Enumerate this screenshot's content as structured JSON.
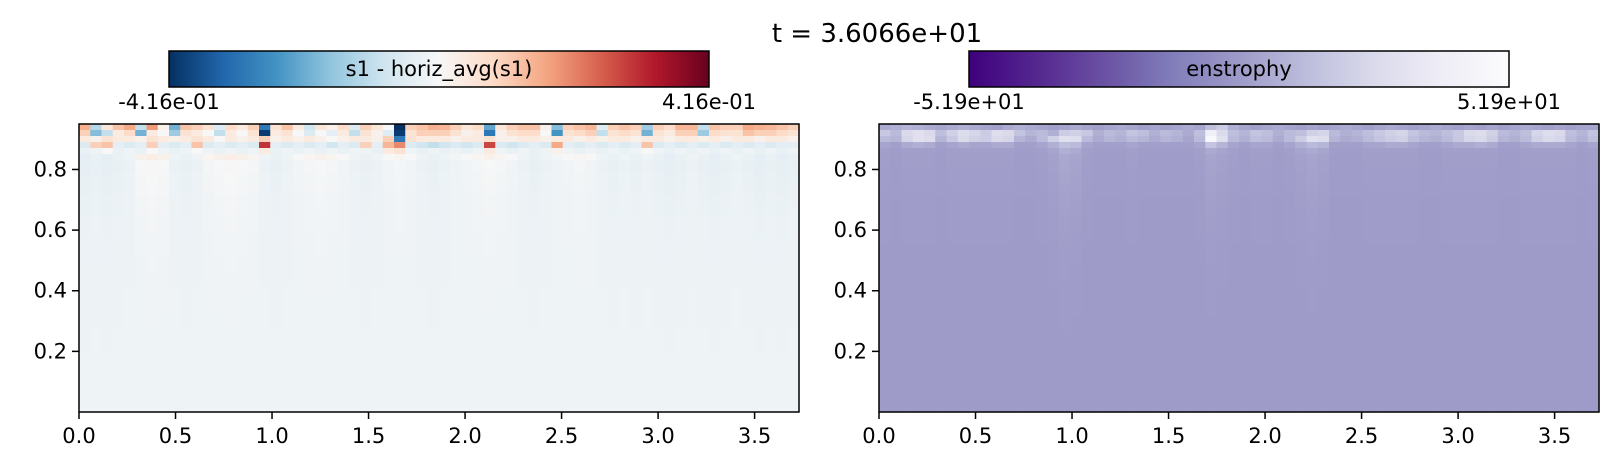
{
  "figure": {
    "title": "t = 3.6066e+01"
  },
  "chart_data": [
    {
      "type": "heatmap",
      "title": "",
      "xlabel": "",
      "ylabel": "",
      "xlim": [
        0.0,
        3.73
      ],
      "ylim": [
        0.0,
        0.95
      ],
      "xticks": [
        0.0,
        0.5,
        1.0,
        1.5,
        2.0,
        2.5,
        3.0,
        3.5
      ],
      "xtick_labels": [
        "0.0",
        "0.5",
        "1.0",
        "1.5",
        "2.0",
        "2.5",
        "3.0",
        "3.5"
      ],
      "yticks": [
        0.2,
        0.4,
        0.6,
        0.8
      ],
      "ytick_labels": [
        "0.2",
        "0.4",
        "0.6",
        "0.8"
      ],
      "colorbar": {
        "label": "s1 - horiz_avg(s1)",
        "colormap": "RdBu_r",
        "vmin": -0.416,
        "vmax": 0.416,
        "min_label": "-4.16e-01",
        "max_label": "4.16e-01",
        "colors": [
          "#053061",
          "#2166ac",
          "#4393c3",
          "#92c5de",
          "#d1e5f0",
          "#f7f7f7",
          "#fddbc7",
          "#f4a582",
          "#d6604d",
          "#b2182b",
          "#67001f"
        ]
      },
      "grid": {
        "nx": 64,
        "ny": 48
      },
      "field": {
        "description_free": true,
        "background": -0.02,
        "top_rows": [
          [
            0.15,
            -0.12,
            0.05,
            0.12,
            0.16,
            -0.1,
            0.18,
            0.02,
            -0.2,
            0.12,
            0.1,
            0.06,
            -0.05,
            0.08,
            0.04,
            0.1,
            -0.3,
            0.06,
            0.12,
            0.04,
            -0.08,
            0.05,
            0.02,
            0.08,
            -0.06,
            0.1,
            0.05,
            0.0,
            -0.42,
            0.1,
            0.12,
            0.15,
            0.14,
            0.1,
            0.05,
            0.08,
            -0.22,
            0.05,
            0.1,
            0.12,
            0.12,
            0.02,
            -0.18,
            0.1,
            0.12,
            0.14,
            -0.05,
            0.1,
            0.12,
            0.1,
            -0.15,
            0.1,
            0.08,
            0.14,
            0.14,
            -0.1,
            0.12,
            0.1,
            0.1,
            0.16,
            0.15,
            0.14,
            0.12,
            0.1
          ],
          [
            0.1,
            -0.18,
            -0.1,
            0.04,
            0.08,
            -0.2,
            0.04,
            0.0,
            -0.15,
            0.06,
            0.04,
            0.0,
            -0.1,
            0.04,
            0.0,
            0.06,
            -0.4,
            0.04,
            0.06,
            0.0,
            -0.06,
            0.0,
            -0.04,
            0.04,
            -0.1,
            0.06,
            0.02,
            -0.05,
            -0.4,
            0.06,
            0.1,
            0.1,
            0.1,
            0.06,
            0.02,
            0.04,
            -0.3,
            0.02,
            0.06,
            0.08,
            0.08,
            0.0,
            -0.25,
            0.06,
            0.08,
            0.1,
            -0.1,
            0.06,
            0.08,
            0.06,
            -0.2,
            0.06,
            0.04,
            0.1,
            0.1,
            -0.15,
            0.08,
            0.06,
            0.06,
            0.12,
            0.1,
            0.1,
            0.08,
            0.06
          ],
          [
            0.04,
            0.02,
            0.06,
            0.04,
            0.04,
            0.02,
            0.06,
            0.04,
            0.02,
            0.04,
            0.06,
            0.04,
            0.0,
            0.04,
            0.02,
            0.04,
            0.1,
            0.02,
            0.04,
            0.02,
            0.04,
            0.02,
            0.0,
            0.02,
            0.04,
            0.04,
            0.02,
            0.1,
            -0.3,
            0.06,
            0.04,
            0.04,
            0.04,
            0.02,
            0.04,
            0.04,
            0.06,
            0.02,
            0.02,
            0.04,
            0.04,
            0.02,
            0.04,
            0.04,
            0.02,
            0.04,
            0.02,
            0.04,
            0.04,
            0.02,
            0.04,
            0.04,
            0.02,
            0.04,
            0.04,
            0.02,
            0.04,
            0.02,
            0.04,
            0.04,
            0.02,
            0.04,
            0.04,
            0.02
          ],
          [
            -0.06,
            0.1,
            0.12,
            -0.04,
            -0.06,
            -0.04,
            0.1,
            -0.04,
            -0.06,
            -0.04,
            0.12,
            -0.06,
            -0.04,
            -0.06,
            -0.04,
            -0.06,
            0.3,
            -0.04,
            -0.06,
            -0.04,
            -0.06,
            -0.04,
            -0.08,
            -0.04,
            -0.06,
            0.1,
            -0.04,
            0.14,
            0.2,
            -0.06,
            -0.08,
            -0.1,
            -0.08,
            -0.06,
            -0.08,
            -0.06,
            0.28,
            -0.06,
            -0.08,
            -0.06,
            -0.04,
            -0.06,
            0.16,
            -0.04,
            -0.06,
            -0.04,
            -0.06,
            -0.04,
            -0.06,
            -0.04,
            0.12,
            -0.06,
            -0.04,
            -0.06,
            -0.04,
            -0.06,
            -0.04,
            -0.06,
            -0.04,
            -0.06,
            -0.04,
            -0.06,
            -0.04,
            -0.04
          ],
          [
            -0.03,
            -0.02,
            0.0,
            -0.03,
            -0.02,
            -0.03,
            0.0,
            -0.02,
            -0.03,
            -0.02,
            0.0,
            -0.02,
            -0.03,
            -0.02,
            -0.03,
            -0.02,
            0.04,
            -0.03,
            -0.02,
            -0.03,
            -0.02,
            -0.03,
            -0.02,
            -0.03,
            -0.02,
            -0.02,
            -0.03,
            0.04,
            0.06,
            -0.02,
            -0.03,
            -0.02,
            -0.03,
            -0.02,
            -0.03,
            -0.02,
            0.04,
            -0.02,
            -0.03,
            -0.02,
            -0.03,
            -0.02,
            0.02,
            -0.02,
            -0.03,
            -0.02,
            -0.03,
            -0.02,
            -0.03,
            -0.02,
            0.0,
            -0.02,
            -0.03,
            -0.02,
            -0.03,
            -0.02,
            -0.03,
            -0.02,
            -0.03,
            -0.02,
            -0.03,
            -0.02,
            -0.03,
            -0.02
          ],
          [
            -0.04,
            -0.03,
            -0.04,
            -0.03,
            -0.02,
            0.02,
            0.03,
            0.02,
            -0.02,
            -0.03,
            -0.02,
            0.01,
            0.02,
            0.03,
            0.02,
            0.01,
            -0.02,
            -0.03,
            -0.02,
            0.0,
            0.01,
            0.02,
            0.01,
            0.0,
            -0.02,
            -0.03,
            -0.02,
            0.0,
            0.01,
            0.0,
            -0.02,
            -0.03,
            -0.02,
            -0.01,
            0.0,
            0.01,
            0.02,
            0.01,
            0.0,
            -0.02,
            -0.03,
            -0.02,
            -0.01,
            0.0,
            0.01,
            0.0,
            -0.02,
            -0.03,
            -0.02,
            -0.03,
            -0.02,
            -0.03,
            -0.04,
            -0.03,
            -0.02,
            -0.03,
            -0.04,
            -0.03,
            -0.02,
            -0.03,
            -0.04,
            -0.03,
            -0.04,
            -0.03
          ]
        ]
      }
    },
    {
      "type": "heatmap",
      "title": "",
      "xlabel": "",
      "ylabel": "",
      "xlim": [
        0.0,
        3.73
      ],
      "ylim": [
        0.0,
        0.95
      ],
      "xticks": [
        0.0,
        0.5,
        1.0,
        1.5,
        2.0,
        2.5,
        3.0,
        3.5
      ],
      "xtick_labels": [
        "0.0",
        "0.5",
        "1.0",
        "1.5",
        "2.0",
        "2.5",
        "3.0",
        "3.5"
      ],
      "yticks": [
        0.2,
        0.4,
        0.6,
        0.8
      ],
      "ytick_labels": [
        "0.2",
        "0.4",
        "0.6",
        "0.8"
      ],
      "colorbar": {
        "label": "enstrophy",
        "colormap": "Purples_r",
        "vmin": -51.9,
        "vmax": 51.9,
        "min_label": "-5.19e+01",
        "max_label": "5.19e+01",
        "colors": [
          "#3f007d",
          "#54278f",
          "#6a51a3",
          "#807dba",
          "#9e9ac8",
          "#bcbddc",
          "#dadaeb",
          "#efedf5",
          "#fcfbfd"
        ]
      },
      "grid": {
        "nx": 64,
        "ny": 48
      },
      "field": {
        "background": 0.3,
        "top_rows": [
          [
            6,
            8,
            10,
            8,
            6,
            4,
            6,
            8,
            6,
            4,
            2,
            6,
            8,
            6,
            4,
            2,
            4,
            6,
            4,
            2,
            4,
            6,
            4,
            2,
            4,
            2,
            4,
            6,
            4,
            14,
            20,
            8,
            4,
            2,
            4,
            6,
            4,
            2,
            4,
            2,
            4,
            6,
            4,
            2,
            4,
            6,
            4,
            2,
            4,
            6,
            4,
            2,
            4,
            2,
            4,
            2,
            4,
            6,
            4,
            2,
            4,
            2,
            4,
            4
          ],
          [
            18,
            12,
            26,
            30,
            26,
            14,
            22,
            28,
            24,
            20,
            28,
            26,
            16,
            10,
            12,
            8,
            20,
            22,
            18,
            8,
            12,
            10,
            16,
            14,
            8,
            12,
            10,
            6,
            14,
            40,
            26,
            14,
            10,
            16,
            14,
            8,
            12,
            14,
            22,
            24,
            12,
            8,
            10,
            14,
            18,
            22,
            24,
            16,
            12,
            10,
            14,
            18,
            26,
            28,
            22,
            12,
            10,
            14,
            24,
            28,
            26,
            14,
            10,
            16
          ],
          [
            12,
            10,
            24,
            30,
            28,
            10,
            18,
            26,
            22,
            20,
            26,
            24,
            10,
            6,
            12,
            22,
            30,
            28,
            12,
            6,
            10,
            8,
            12,
            10,
            6,
            10,
            8,
            4,
            12,
            48,
            30,
            12,
            8,
            14,
            12,
            6,
            12,
            20,
            30,
            28,
            10,
            6,
            8,
            12,
            16,
            20,
            22,
            14,
            10,
            8,
            12,
            18,
            24,
            26,
            20,
            10,
            8,
            12,
            22,
            26,
            24,
            12,
            8,
            14
          ],
          [
            4,
            2,
            6,
            8,
            6,
            2,
            4,
            6,
            4,
            4,
            6,
            6,
            2,
            2,
            4,
            8,
            14,
            12,
            4,
            2,
            2,
            2,
            4,
            2,
            2,
            2,
            2,
            2,
            4,
            16,
            10,
            4,
            2,
            4,
            4,
            2,
            4,
            8,
            12,
            10,
            2,
            2,
            2,
            4,
            4,
            6,
            6,
            4,
            2,
            2,
            4,
            6,
            6,
            8,
            6,
            2,
            2,
            4,
            6,
            6,
            6,
            4,
            2,
            4
          ],
          [
            2,
            1,
            2,
            2,
            2,
            1,
            2,
            2,
            2,
            2,
            2,
            2,
            1,
            1,
            2,
            4,
            8,
            6,
            2,
            1,
            1,
            1,
            2,
            1,
            1,
            1,
            1,
            1,
            2,
            6,
            4,
            2,
            1,
            2,
            2,
            1,
            2,
            4,
            6,
            4,
            1,
            1,
            1,
            2,
            2,
            2,
            2,
            2,
            1,
            1,
            2,
            2,
            2,
            2,
            2,
            1,
            1,
            2,
            2,
            2,
            2,
            2,
            1,
            2
          ]
        ]
      }
    }
  ]
}
